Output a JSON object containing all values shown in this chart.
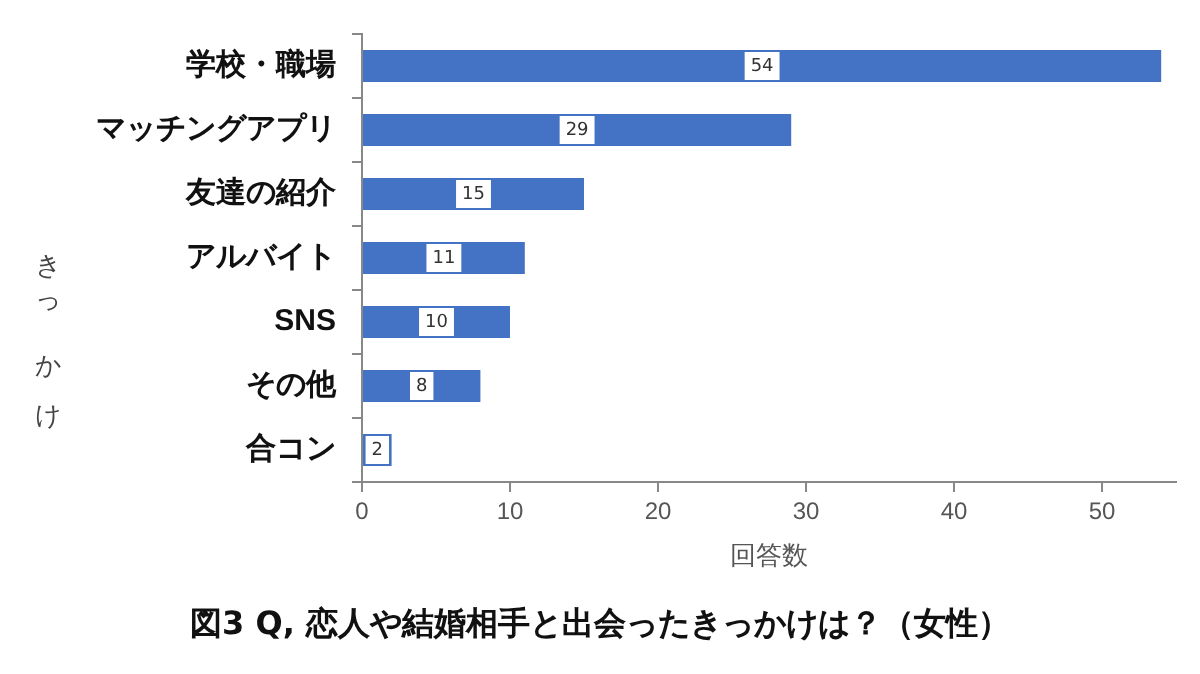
{
  "chart_data": {
    "type": "bar",
    "orientation": "horizontal",
    "title": "図3 Q, 恋人や結婚相手と出会ったきっかけは？（女性）",
    "xlabel": "回答数",
    "ylabel": "きっかけ",
    "categories": [
      "学校・職場",
      "マッチングアプリ",
      "友達の紹介",
      "アルバイト",
      "SNS",
      "その他",
      "合コン"
    ],
    "values": [
      54,
      29,
      15,
      11,
      10,
      8,
      2
    ],
    "color": "#4472c4",
    "xlim": [
      0,
      55
    ],
    "xticks": [
      0,
      10,
      20,
      30,
      40,
      50
    ],
    "grid": false,
    "legend": false,
    "data_labels": true
  }
}
